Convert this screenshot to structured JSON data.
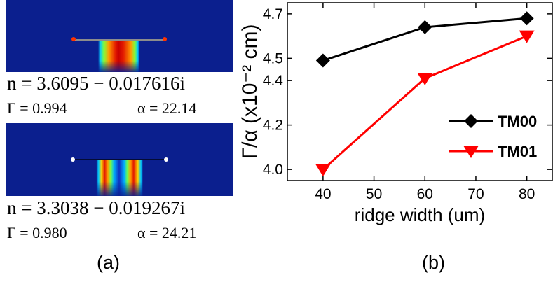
{
  "panel_a": {
    "mode1": {
      "n_text": "n = 3.6095 − 0.017616i",
      "gamma_text": "Γ = 0.994",
      "alpha_text": "α = 22.14"
    },
    "mode2": {
      "n_text": "n = 3.3038 − 0.019267i",
      "gamma_text": "Γ = 0.980",
      "alpha_text": "α = 24.21"
    },
    "caption": "(a)"
  },
  "panel_b": {
    "caption": "(b)"
  },
  "colors": {
    "field_bg": "#0b1f8e",
    "tm00": "#000000",
    "tm01": "#ff0000"
  },
  "chart_data": {
    "type": "line",
    "xlabel": "ridge width (um)",
    "ylabel": "Γ/α (x10⁻² cm)",
    "xlim": [
      33,
      85
    ],
    "ylim": [
      3.95,
      4.75
    ],
    "x_ticks": [
      40,
      50,
      60,
      70,
      80
    ],
    "y_ticks": [
      "4.0",
      "4.2",
      "4.4",
      "4.5",
      "4.7"
    ],
    "grid": false,
    "legend_position": "bottom-right",
    "series": [
      {
        "name": "TM00",
        "marker": "diamond",
        "color": "#000000",
        "x": [
          40,
          60,
          80
        ],
        "y": [
          4.49,
          4.64,
          4.68
        ]
      },
      {
        "name": "TM01",
        "marker": "triangle-down",
        "color": "#ff0000",
        "x": [
          40,
          60,
          80
        ],
        "y": [
          4.0,
          4.41,
          4.6
        ]
      }
    ]
  }
}
